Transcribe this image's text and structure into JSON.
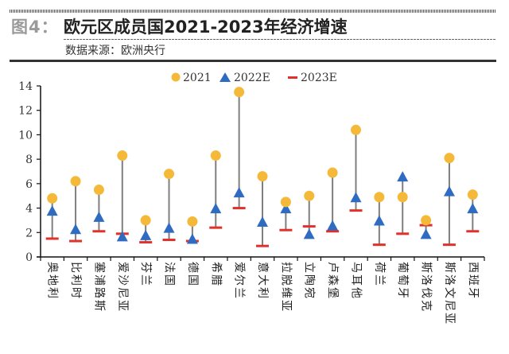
{
  "header": {
    "figure_label": "图4：",
    "title": "欧元区成员国2021-2023年经济增速",
    "source": "数据来源：欧洲央行"
  },
  "colors": {
    "series_2021": "#F5B93A",
    "series_2022E": "#2F6BC0",
    "series_2023E": "#E0312B",
    "connector": "#7f7f7f"
  },
  "chart_data": {
    "type": "scatter",
    "title": "欧元区成员国2021-2023年经济增速",
    "xlabel": "",
    "ylabel": "",
    "ylim": [
      0,
      14
    ],
    "yticks": [
      0,
      2,
      4,
      6,
      8,
      10,
      12,
      14
    ],
    "grid": false,
    "legend_position": "top-center",
    "categories": [
      "奥地利",
      "比利时",
      "塞浦路斯",
      "爱沙尼亚",
      "芬兰",
      "法国",
      "德国",
      "希腊",
      "爱尔兰",
      "意大利",
      "拉脱维亚",
      "立陶宛",
      "卢森堡",
      "马耳他",
      "荷兰",
      "葡萄牙",
      "斯洛伐克",
      "斯洛文尼亚",
      "西班牙"
    ],
    "series": [
      {
        "name": "2021",
        "marker": "circle",
        "values": [
          4.8,
          6.2,
          5.5,
          8.3,
          3.0,
          6.8,
          2.9,
          8.3,
          13.5,
          6.6,
          4.5,
          5.0,
          6.9,
          10.4,
          4.9,
          4.9,
          3.0,
          8.1,
          5.1
        ]
      },
      {
        "name": "2022E",
        "marker": "triangle",
        "values": [
          3.7,
          2.2,
          3.2,
          1.6,
          1.7,
          2.3,
          1.4,
          3.9,
          5.2,
          2.8,
          3.9,
          1.8,
          2.5,
          4.8,
          2.9,
          6.5,
          1.8,
          5.3,
          3.9
        ]
      },
      {
        "name": "2023E",
        "marker": "dash",
        "values": [
          1.5,
          1.3,
          2.1,
          1.9,
          1.2,
          1.4,
          1.3,
          2.4,
          4.0,
          0.9,
          2.2,
          2.5,
          2.1,
          3.8,
          1.0,
          1.9,
          2.6,
          1.0,
          2.1
        ]
      }
    ]
  }
}
